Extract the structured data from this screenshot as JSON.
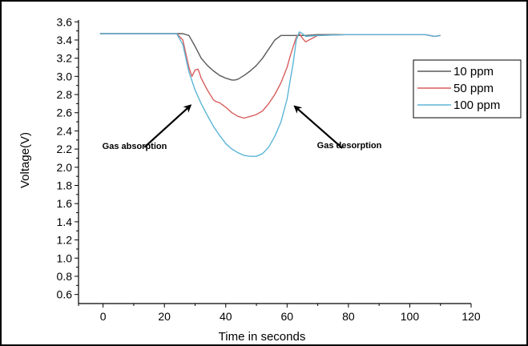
{
  "chart_data": {
    "type": "line",
    "title": "",
    "xlabel": "Time in seconds",
    "ylabel": "Voltage(V)",
    "xlim": [
      -8,
      120
    ],
    "ylim": [
      0.5,
      3.62
    ],
    "xticks": [
      0,
      20,
      40,
      60,
      80,
      100,
      120
    ],
    "yticks": [
      0.6,
      0.8,
      1.0,
      1.2,
      1.4,
      1.6,
      1.8,
      2.0,
      2.2,
      2.4,
      2.6,
      2.8,
      3.0,
      3.2,
      3.4,
      3.6
    ],
    "xtick_labels": [
      "0",
      "20",
      "40",
      "60",
      "80",
      "100",
      "120"
    ],
    "ytick_labels": [
      "0.6",
      "0.8",
      "1.0",
      "1.2",
      "1.4",
      "1.6",
      "1.8",
      "2.0",
      "2.2",
      "2.4",
      "2.6",
      "2.8",
      "3.0",
      "3.2",
      "3.4",
      "3.6"
    ],
    "grid": false,
    "legend_position": "right",
    "series": [
      {
        "name": "10 ppm",
        "color": "#5a5a5a",
        "x": [
          -1,
          10,
          20,
          24,
          26,
          28,
          30,
          32,
          34,
          36,
          38,
          40,
          42,
          43,
          44,
          46,
          48,
          50,
          52,
          54,
          56,
          58,
          60,
          62,
          64,
          66,
          70,
          80,
          90,
          100,
          105,
          108,
          110
        ],
        "y": [
          3.47,
          3.47,
          3.47,
          3.47,
          3.47,
          3.45,
          3.33,
          3.2,
          3.12,
          3.06,
          3.01,
          2.98,
          2.96,
          2.96,
          2.97,
          3.01,
          3.06,
          3.12,
          3.2,
          3.3,
          3.4,
          3.45,
          3.45,
          3.45,
          3.45,
          3.45,
          3.46,
          3.46,
          3.46,
          3.46,
          3.46,
          3.44,
          3.45
        ]
      },
      {
        "name": "50 ppm",
        "color": "#d95f5f",
        "x": [
          -1,
          10,
          20,
          24,
          26,
          27,
          28,
          29,
          30,
          31,
          32,
          34,
          36,
          37,
          38,
          40,
          42,
          44,
          46,
          48,
          50,
          52,
          54,
          56,
          58,
          60,
          61,
          62,
          63,
          64,
          65,
          66,
          70,
          80,
          90,
          100,
          105,
          108,
          110
        ],
        "y": [
          3.47,
          3.47,
          3.47,
          3.47,
          3.4,
          3.25,
          3.1,
          3.0,
          3.07,
          3.08,
          2.98,
          2.85,
          2.74,
          2.72,
          2.71,
          2.66,
          2.6,
          2.56,
          2.54,
          2.56,
          2.58,
          2.62,
          2.7,
          2.8,
          2.93,
          3.1,
          3.22,
          3.33,
          3.43,
          3.47,
          3.42,
          3.38,
          3.45,
          3.46,
          3.46,
          3.46,
          3.46,
          3.44,
          3.45
        ]
      },
      {
        "name": "100 ppm",
        "color": "#5bb5d6",
        "x": [
          -1,
          10,
          20,
          24,
          26,
          28,
          30,
          32,
          34,
          36,
          38,
          40,
          42,
          44,
          46,
          48,
          50,
          52,
          54,
          56,
          58,
          60,
          61,
          62,
          63,
          64,
          65,
          66,
          70,
          80,
          90,
          100,
          105,
          108,
          110
        ],
        "y": [
          3.47,
          3.47,
          3.47,
          3.47,
          3.35,
          3.05,
          2.85,
          2.7,
          2.57,
          2.45,
          2.35,
          2.26,
          2.2,
          2.16,
          2.13,
          2.12,
          2.12,
          2.15,
          2.22,
          2.34,
          2.5,
          2.75,
          2.95,
          3.15,
          3.4,
          3.49,
          3.47,
          3.44,
          3.45,
          3.46,
          3.46,
          3.46,
          3.46,
          3.44,
          3.45
        ]
      }
    ],
    "annotations": [
      {
        "text": "Gas absorption",
        "arrow_from": [
          13.5,
          2.22
        ],
        "arrow_to": [
          28.5,
          2.68
        ]
      },
      {
        "text": "Gas desorption",
        "arrow_from": [
          78.0,
          2.21
        ],
        "arrow_to": [
          62.5,
          2.67
        ]
      }
    ]
  }
}
